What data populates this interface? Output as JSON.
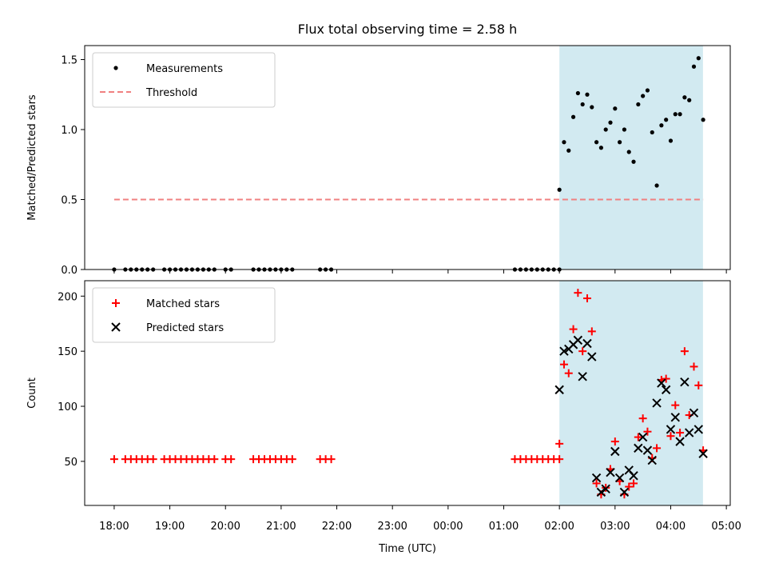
{
  "chart_data": {
    "title": "Flux total observing time = 2.58 h",
    "xlabel": "Time (UTC)",
    "x_ticks": [
      "18:00",
      "19:00",
      "20:00",
      "21:00",
      "22:00",
      "23:00",
      "00:00",
      "01:00",
      "02:00",
      "03:00",
      "04:00",
      "05:00"
    ],
    "xlim_hours": [
      17.47,
      29.07
    ],
    "highlight": {
      "from": "02:00",
      "to": "04:35",
      "from_hours": 26.0,
      "to_hours": 28.58,
      "color": "#add8e6"
    },
    "charts": [
      {
        "type": "scatter",
        "ylabel": "Matched/Predicted stars",
        "ylim": [
          0,
          1.6
        ],
        "y_ticks": [
          "0.0",
          "0.5",
          "1.0",
          "1.5"
        ],
        "y_tick_values": [
          0,
          0.5,
          1.0,
          1.5
        ],
        "legend_position": "top-left",
        "series": [
          {
            "name": "Measurements",
            "marker": "dot",
            "color": "#000000",
            "x": [
              "18:00",
              "18:12",
              "18:18",
              "18:24",
              "18:30",
              "18:36",
              "18:42",
              "18:54",
              "19:00",
              "19:06",
              "19:12",
              "19:18",
              "19:24",
              "19:30",
              "19:36",
              "19:42",
              "19:48",
              "20:00",
              "20:06",
              "20:30",
              "20:36",
              "20:42",
              "20:48",
              "20:54",
              "21:00",
              "21:06",
              "21:12",
              "21:42",
              "21:48",
              "21:54",
              "01:12",
              "01:18",
              "01:24",
              "01:30",
              "01:36",
              "01:42",
              "01:48",
              "01:54",
              "02:00",
              "02:00",
              "02:05",
              "02:10",
              "02:15",
              "02:20",
              "02:25",
              "02:30",
              "02:35",
              "02:40",
              "02:45",
              "02:50",
              "02:55",
              "03:00",
              "03:05",
              "03:10",
              "03:15",
              "03:20",
              "03:25",
              "03:30",
              "03:35",
              "03:40",
              "03:45",
              "03:50",
              "03:55",
              "04:00",
              "04:05",
              "04:10",
              "04:15",
              "04:20",
              "04:25",
              "04:30",
              "04:35"
            ],
            "y": [
              0,
              0,
              0,
              0,
              0,
              0,
              0,
              0,
              0,
              0,
              0,
              0,
              0,
              0,
              0,
              0,
              0,
              0,
              0,
              0,
              0,
              0,
              0,
              0,
              0,
              0,
              0,
              0,
              0,
              0,
              0,
              0,
              0,
              0,
              0,
              0,
              0,
              0,
              0,
              0.57,
              0.91,
              0.85,
              1.09,
              1.26,
              1.18,
              1.25,
              1.16,
              0.91,
              0.87,
              1.0,
              1.05,
              1.15,
              0.91,
              1.0,
              0.84,
              0.77,
              1.18,
              1.24,
              1.28,
              0.98,
              0.6,
              1.03,
              1.07,
              0.92,
              1.11,
              1.11,
              1.23,
              1.21,
              1.45,
              1.51,
              1.07
            ]
          },
          {
            "name": "Threshold",
            "type": "line",
            "style": "dashed",
            "color": "#f08080",
            "x": [
              "18:00",
              "04:35"
            ],
            "y": [
              0.5,
              0.5
            ]
          }
        ]
      },
      {
        "type": "scatter",
        "ylabel": "Count",
        "ylim": [
          10,
          214
        ],
        "y_ticks": [
          "50",
          "100",
          "150",
          "200"
        ],
        "y_tick_values": [
          50,
          100,
          150,
          200
        ],
        "legend_position": "top-left",
        "series": [
          {
            "name": "Matched stars",
            "marker": "plus",
            "color": "#ff0000",
            "x": [
              "18:00",
              "18:12",
              "18:18",
              "18:24",
              "18:30",
              "18:36",
              "18:42",
              "18:54",
              "19:00",
              "19:06",
              "19:12",
              "19:18",
              "19:24",
              "19:30",
              "19:36",
              "19:42",
              "19:48",
              "20:00",
              "20:06",
              "20:30",
              "20:36",
              "20:42",
              "20:48",
              "20:54",
              "21:00",
              "21:06",
              "21:12",
              "21:42",
              "21:48",
              "21:54",
              "01:12",
              "01:18",
              "01:24",
              "01:30",
              "01:36",
              "01:42",
              "01:48",
              "01:54",
              "02:00",
              "02:00",
              "02:05",
              "02:10",
              "02:15",
              "02:20",
              "02:25",
              "02:30",
              "02:35",
              "02:40",
              "02:45",
              "02:50",
              "02:55",
              "03:00",
              "03:05",
              "03:10",
              "03:15",
              "03:20",
              "03:25",
              "03:30",
              "03:35",
              "03:40",
              "03:45",
              "03:50",
              "03:55",
              "04:00",
              "04:05",
              "04:10",
              "04:15",
              "04:20",
              "04:25",
              "04:30",
              "04:35"
            ],
            "y": [
              52,
              52,
              52,
              52,
              52,
              52,
              52,
              52,
              52,
              52,
              52,
              52,
              52,
              52,
              52,
              52,
              52,
              52,
              52,
              52,
              52,
              52,
              52,
              52,
              52,
              52,
              52,
              52,
              52,
              52,
              52,
              52,
              52,
              52,
              52,
              52,
              52,
              52,
              52,
              66,
              138,
              130,
              170,
              203,
              150,
              198,
              168,
              30,
              20,
              26,
              43,
              68,
              32,
              20,
              27,
              30,
              72,
              89,
              77,
              53,
              62,
              124,
              125,
              73,
              101,
              76,
              150,
              92,
              136,
              119,
              60
            ]
          },
          {
            "name": "Predicted stars",
            "marker": "x",
            "color": "#000000",
            "x": [
              "02:00",
              "02:05",
              "02:10",
              "02:15",
              "02:20",
              "02:25",
              "02:30",
              "02:35",
              "02:40",
              "02:45",
              "02:50",
              "02:55",
              "03:00",
              "03:05",
              "03:10",
              "03:15",
              "03:20",
              "03:25",
              "03:30",
              "03:35",
              "03:40",
              "03:45",
              "03:50",
              "03:55",
              "04:00",
              "04:05",
              "04:10",
              "04:15",
              "04:20",
              "04:25",
              "04:30",
              "04:35"
            ],
            "y": [
              115,
              150,
              152,
              156,
              160,
              127,
              157,
              145,
              35,
              22,
              25,
              40,
              59,
              35,
              22,
              42,
              37,
              62,
              72,
              60,
              51,
              103,
              121,
              115,
              79,
              90,
              68,
              122,
              76,
              94,
              79,
              57
            ]
          }
        ]
      }
    ]
  }
}
